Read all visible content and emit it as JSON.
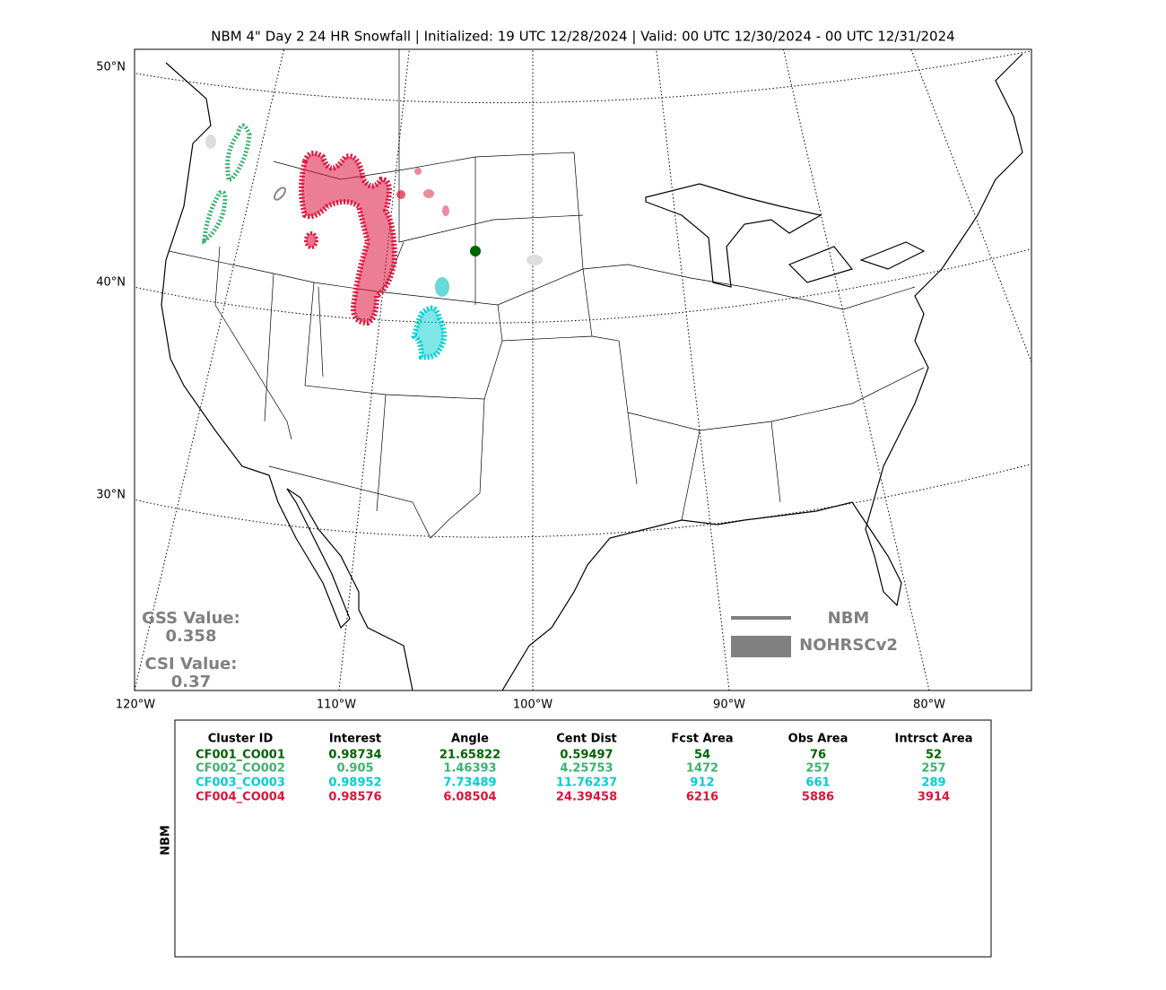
{
  "title": "NBM 4\" Day 2 24 HR Snowfall | Initialized: 19 UTC 12/28/2024 | Valid: 00 UTC 12/30/2024 - 00 UTC 12/31/2024",
  "map": {
    "lat_labels": [
      "50°N",
      "40°N",
      "30°N"
    ],
    "lon_labels": [
      "120°W",
      "110°W",
      "100°W",
      "90°W",
      "80°W"
    ]
  },
  "scores": {
    "gss_label": "GSS Value:",
    "gss": "0.358",
    "csi_label": "CSI Value:",
    "csi": "0.37"
  },
  "legend": {
    "forecast": "NBM",
    "observed": "NOHRSCv2"
  },
  "table": {
    "side_label": "NBM",
    "headers": [
      "Cluster ID",
      "Interest",
      "Angle",
      "Cent Dist",
      "Fcst Area",
      "Obs Area",
      "Intrsct Area"
    ],
    "row_colors": [
      "#006400",
      "#3cb371",
      "#00ced1",
      "#dc143c"
    ],
    "rows": [
      [
        "CF001_CO001",
        "0.98734",
        "21.65822",
        "0.59497",
        "54",
        "76",
        "52"
      ],
      [
        "CF002_CO002",
        "0.905",
        "1.46393",
        "4.25753",
        "1472",
        "257",
        "257"
      ],
      [
        "CF003_CO003",
        "0.98952",
        "7.73489",
        "11.76237",
        "912",
        "661",
        "289"
      ],
      [
        "CF004_CO004",
        "0.98576",
        "6.08504",
        "24.39458",
        "6216",
        "5886",
        "3914"
      ]
    ]
  }
}
